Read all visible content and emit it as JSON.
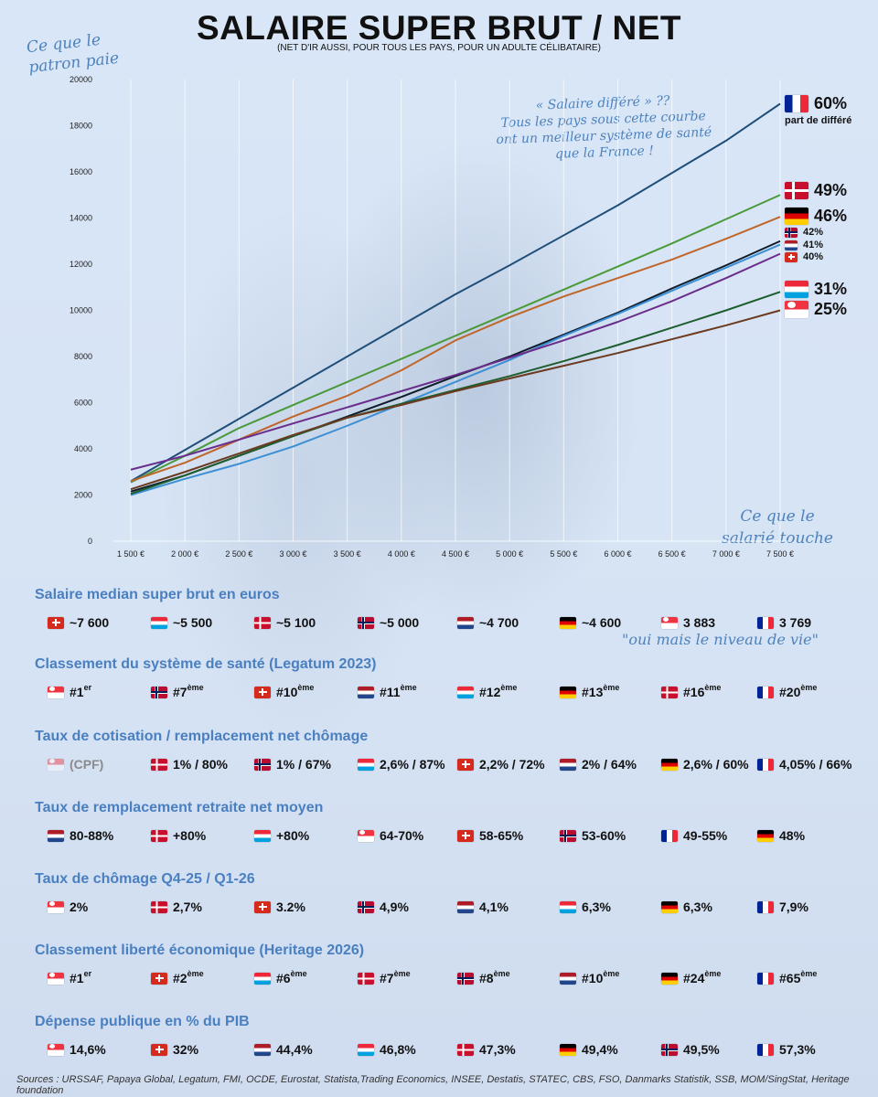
{
  "title": "SALAIRE SUPER BRUT / NET",
  "subtitle": "(NET D'IR AUSSI, POUR TOUS LES PAYS, POUR UN ADULTE CÉLIBATAIRE)",
  "annotations": {
    "top_left": [
      "Ce que le",
      "patron paie"
    ],
    "middle": [
      "« Salaire différé » ??",
      "Tous les pays sous cette courbe",
      "ont un meilleur système de santé",
      "que la France !"
    ],
    "bottom_right": [
      "Ce que le",
      "salarié touche"
    ],
    "niveau": "\"oui mais le niveau de vie\""
  },
  "chart_data": {
    "type": "line",
    "title": "SALAIRE SUPER BRUT / NET",
    "xlabel": "Ce que le salarié touche",
    "ylabel": "Ce que le patron paie",
    "x": [
      1500,
      2000,
      2500,
      3000,
      3500,
      4000,
      4500,
      5000,
      5500,
      6000,
      6500,
      7000,
      7500
    ],
    "xtick_labels": [
      "1 500 €",
      "2 000 €",
      "2 500 €",
      "3 000 €",
      "3 500 €",
      "4 000 €",
      "4 500 €",
      "5 000 €",
      "5 500 €",
      "6 000 €",
      "6 500 €",
      "7 000 €",
      "7 500 €"
    ],
    "ylim": [
      0,
      20000
    ],
    "yticks": [
      0,
      2000,
      4000,
      6000,
      8000,
      10000,
      12000,
      14000,
      16000,
      18000,
      20000
    ],
    "grid": "vertical",
    "series": [
      {
        "name": "France",
        "flag": "fr",
        "color": "#1f4e79",
        "end_label": "60%",
        "sub_label": "part de différé",
        "values": [
          2600,
          3950,
          5300,
          6650,
          8000,
          9350,
          10700,
          11950,
          13250,
          14550,
          15950,
          17350,
          18950
        ]
      },
      {
        "name": "Danemark",
        "flag": "dk",
        "color": "#4a9a3a",
        "end_label": "49%",
        "values": [
          2550,
          3700,
          4900,
          5900,
          6900,
          7900,
          8900,
          9900,
          10900,
          11900,
          12900,
          13950,
          15000
        ]
      },
      {
        "name": "Allemagne",
        "flag": "de",
        "color": "#c0662a",
        "end_label": "46%",
        "values": [
          2600,
          3400,
          4400,
          5400,
          6300,
          7400,
          8700,
          9700,
          10600,
          11400,
          12200,
          13100,
          14050
        ]
      },
      {
        "name": "Norvège",
        "flag": "no",
        "color": "#0d1b2a",
        "end_label": "42%",
        "values": [
          2150,
          2850,
          3700,
          4550,
          5400,
          6250,
          7150,
          8000,
          8950,
          9900,
          10950,
          11950,
          13000
        ]
      },
      {
        "name": "Pays-Bas",
        "flag": "nl",
        "color": "#3c8fd4",
        "end_label": "41%",
        "values": [
          2000,
          2700,
          3350,
          4100,
          5000,
          5950,
          6900,
          7850,
          8900,
          9850,
          10850,
          11850,
          12850
        ]
      },
      {
        "name": "Suisse",
        "flag": "ch",
        "color": "#6a2d8c",
        "end_label": "40%",
        "values": [
          3100,
          3700,
          4400,
          5100,
          5800,
          6500,
          7200,
          7950,
          8700,
          9500,
          10400,
          11400,
          12450
        ]
      },
      {
        "name": "Luxembourg",
        "flag": "lu",
        "color": "#1e5e2e",
        "end_label": "31%",
        "values": [
          2050,
          2850,
          3700,
          4550,
          5350,
          5950,
          6550,
          7150,
          7800,
          8500,
          9250,
          10000,
          10800
        ]
      },
      {
        "name": "Singapour",
        "flag": "sg",
        "color": "#6b3a1f",
        "end_label": "25%",
        "values": [
          2250,
          3000,
          3800,
          4600,
          5350,
          5900,
          6500,
          7050,
          7600,
          8150,
          8750,
          9350,
          10000
        ]
      }
    ]
  },
  "sections": [
    {
      "title": "Salaire median super brut en euros",
      "items": [
        {
          "flag": "ch",
          "text": "~7 600"
        },
        {
          "flag": "lu",
          "text": "~5 500"
        },
        {
          "flag": "dk",
          "text": "~5 100"
        },
        {
          "flag": "no",
          "text": "~5 000"
        },
        {
          "flag": "nl",
          "text": "~4 700"
        },
        {
          "flag": "de",
          "text": "~4 600"
        },
        {
          "flag": "sg",
          "text": "3 883"
        },
        {
          "flag": "fr",
          "text": "3 769"
        }
      ]
    },
    {
      "title": "Classement du système de santé (Legatum 2023)",
      "items": [
        {
          "flag": "sg",
          "text": "#1",
          "sup": "er"
        },
        {
          "flag": "no",
          "text": "#7",
          "sup": "ème"
        },
        {
          "flag": "ch",
          "text": "#10",
          "sup": "ème"
        },
        {
          "flag": "nl",
          "text": "#11",
          "sup": "ème"
        },
        {
          "flag": "lu",
          "text": "#12",
          "sup": "ème"
        },
        {
          "flag": "de",
          "text": "#13",
          "sup": "ème"
        },
        {
          "flag": "dk",
          "text": "#16",
          "sup": "ème"
        },
        {
          "flag": "fr",
          "text": "#20",
          "sup": "ème"
        }
      ]
    },
    {
      "title": "Taux de cotisation / remplacement net chômage",
      "items": [
        {
          "flag": "sg",
          "text": "(CPF)",
          "muted": true
        },
        {
          "flag": "dk",
          "text": "1% / 80%"
        },
        {
          "flag": "no",
          "text": "1% / 67%"
        },
        {
          "flag": "lu",
          "text": "2,6% / 87%"
        },
        {
          "flag": "ch",
          "text": "2,2% / 72%"
        },
        {
          "flag": "nl",
          "text": "2% / 64%"
        },
        {
          "flag": "de",
          "text": "2,6% / 60%"
        },
        {
          "flag": "fr",
          "text": "4,05% / 66%"
        }
      ]
    },
    {
      "title": "Taux de remplacement retraite net moyen",
      "items": [
        {
          "flag": "nl",
          "text": "80-88%"
        },
        {
          "flag": "dk",
          "text": "+80%"
        },
        {
          "flag": "lu",
          "text": "+80%"
        },
        {
          "flag": "sg",
          "text": "64-70%"
        },
        {
          "flag": "ch",
          "text": "58-65%"
        },
        {
          "flag": "no",
          "text": "53-60%"
        },
        {
          "flag": "fr",
          "text": "49-55%"
        },
        {
          "flag": "de",
          "text": "48%"
        }
      ]
    },
    {
      "title": "Taux de chômage Q4-25 / Q1-26",
      "items": [
        {
          "flag": "sg",
          "text": "2%"
        },
        {
          "flag": "dk",
          "text": "2,7%"
        },
        {
          "flag": "ch",
          "text": "3.2%"
        },
        {
          "flag": "no",
          "text": "4,9%"
        },
        {
          "flag": "nl",
          "text": "4,1%"
        },
        {
          "flag": "lu",
          "text": "6,3%"
        },
        {
          "flag": "de",
          "text": "6,3%"
        },
        {
          "flag": "fr",
          "text": "7,9%"
        }
      ]
    },
    {
      "title": "Classement liberté économique (Heritage 2026)",
      "items": [
        {
          "flag": "sg",
          "text": "#1",
          "sup": "er"
        },
        {
          "flag": "ch",
          "text": "#2",
          "sup": "ème"
        },
        {
          "flag": "lu",
          "text": "#6",
          "sup": "ème"
        },
        {
          "flag": "dk",
          "text": "#7",
          "sup": "ème"
        },
        {
          "flag": "no",
          "text": "#8",
          "sup": "ème"
        },
        {
          "flag": "nl",
          "text": "#10",
          "sup": "ème"
        },
        {
          "flag": "de",
          "text": "#24",
          "sup": "ème"
        },
        {
          "flag": "fr",
          "text": "#65",
          "sup": "ème"
        }
      ]
    },
    {
      "title": "Dépense publique en % du PIB",
      "items": [
        {
          "flag": "sg",
          "text": "14,6%"
        },
        {
          "flag": "ch",
          "text": "32%"
        },
        {
          "flag": "nl",
          "text": "44,4%"
        },
        {
          "flag": "lu",
          "text": "46,8%"
        },
        {
          "flag": "dk",
          "text": "47,3%"
        },
        {
          "flag": "de",
          "text": "49,4%"
        },
        {
          "flag": "no",
          "text": "49,5%"
        },
        {
          "flag": "fr",
          "text": "57,3%"
        }
      ]
    }
  ],
  "sources": "Sources : URSSAF, Papaya Global, Legatum, FMI, OCDE, Eurostat, Statista,Trading Economics, INSEE, Destatis, STATEC, CBS, FSO, Danmarks Statistik, SSB, MOM/SingStat, Heritage foundation"
}
